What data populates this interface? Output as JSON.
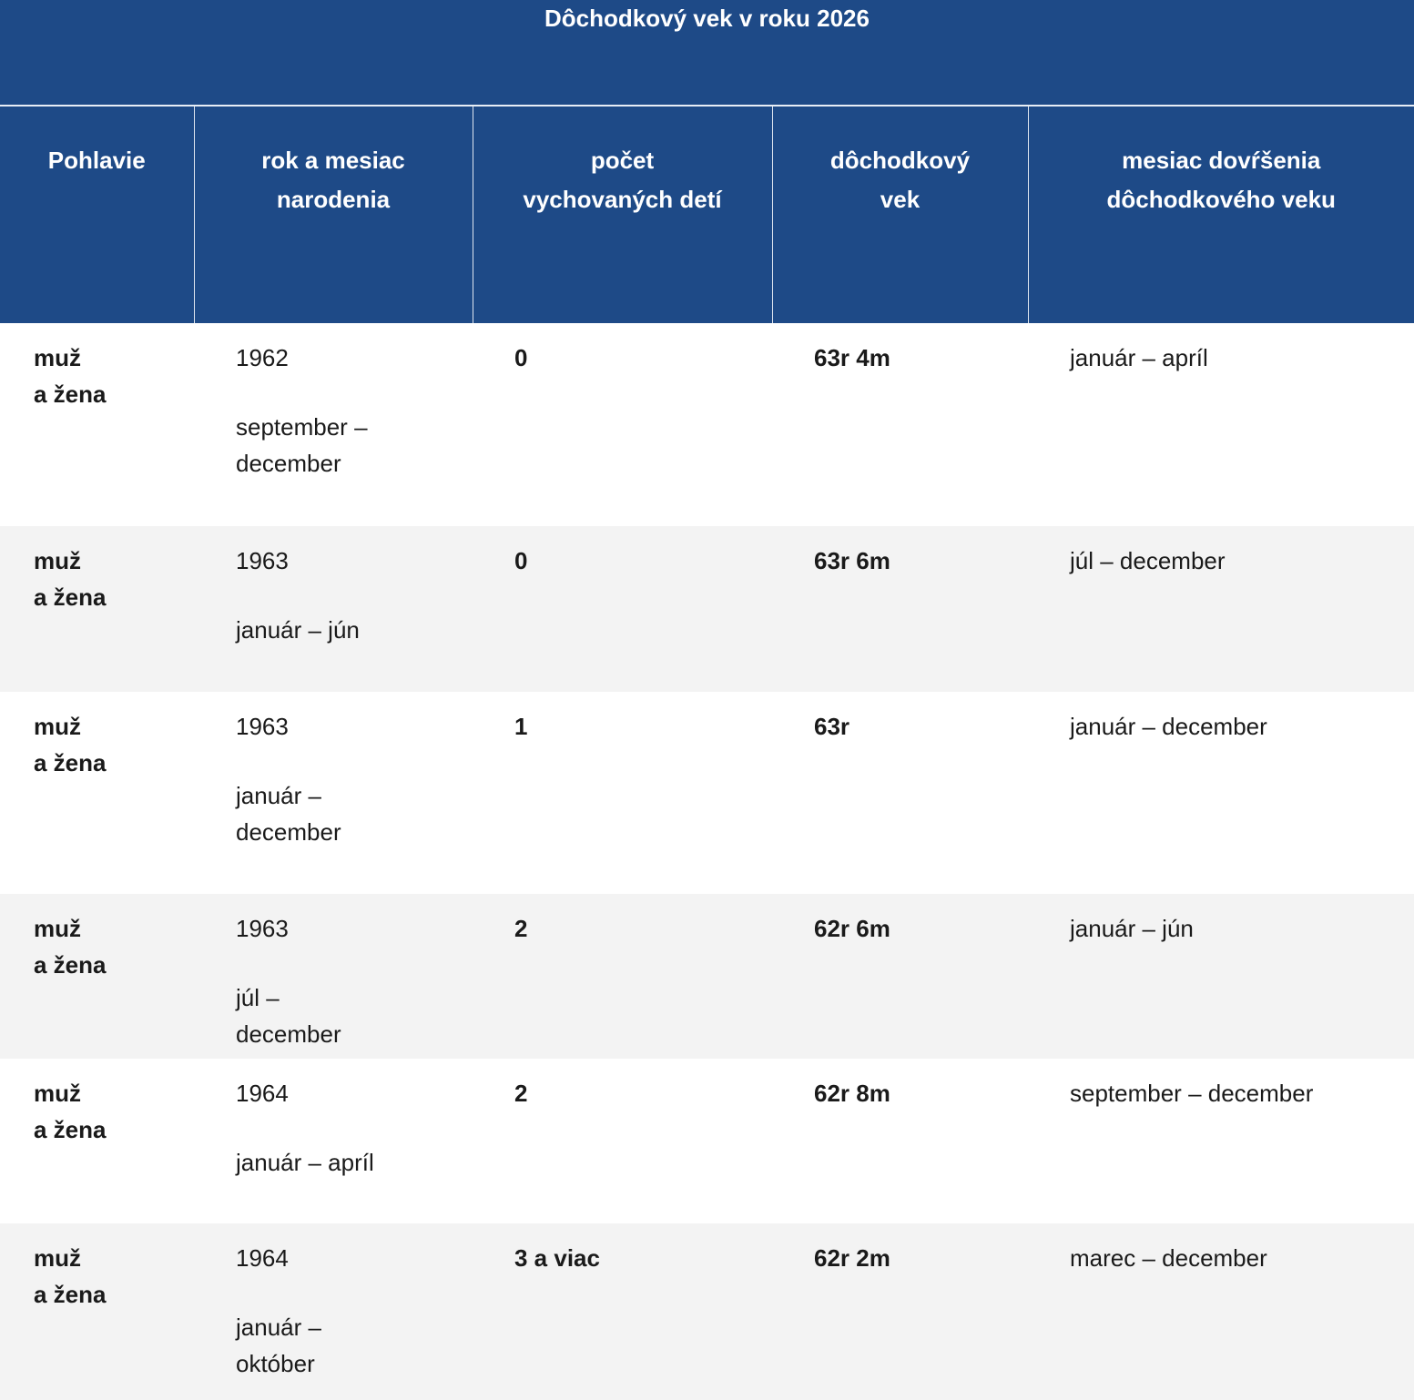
{
  "title": "Dôchodkový vek v roku 2026",
  "columns": [
    "Pohlavie",
    "rok a mesiac narodenia",
    "počet vychovaných detí",
    "dôchodkový vek",
    "mesiac dovŕšenia dôchodkového veku"
  ],
  "columns_lines": [
    [
      "Pohlavie"
    ],
    [
      "rok a mesiac",
      "narodenia"
    ],
    [
      "počet",
      "vychovaných detí"
    ],
    [
      "dôchodkový",
      "vek"
    ],
    [
      "mesiac dovŕšenia",
      "dôchodkového veku"
    ]
  ],
  "rows": [
    {
      "gender_1": "muž",
      "gender_2": "a žena",
      "year": "1962",
      "months": "september – december",
      "children": "0",
      "age": "63r 4m",
      "month_reached": "január – apríl"
    },
    {
      "gender_1": "muž",
      "gender_2": "a žena",
      "year": "1963",
      "months": "január – jún",
      "children": "0",
      "age": "63r 6m",
      "month_reached": "júl – december"
    },
    {
      "gender_1": "muž",
      "gender_2": "a žena",
      "year": "1963",
      "months": "január – december",
      "children": "1",
      "age": "63r",
      "month_reached": "január – december"
    },
    {
      "gender_1": "muž",
      "gender_2": "a žena",
      "year": "1963",
      "months": "júl – december",
      "children": "2",
      "age": "62r 6m",
      "month_reached": "január – jún"
    },
    {
      "gender_1": "muž",
      "gender_2": "a žena",
      "year": "1964",
      "months": "január – apríl",
      "children": "2",
      "age": "62r 8m",
      "month_reached": "september – december"
    },
    {
      "gender_1": "muž",
      "gender_2": "a žena",
      "year": "1964",
      "months": "január – október",
      "children": "3 a viac",
      "age": "62r 2m",
      "month_reached": "marec – december"
    }
  ],
  "colors": {
    "header_bg": "#1e4a87",
    "alt_row_bg": "#f3f3f3"
  }
}
